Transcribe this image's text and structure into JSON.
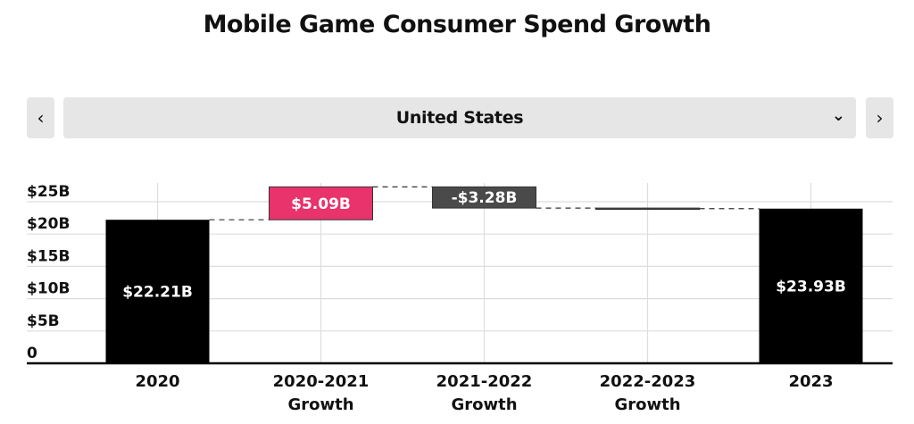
{
  "title": "Mobile Game Consumer Spend Growth",
  "selector": {
    "prev_label": "‹",
    "next_label": "›",
    "selected": "United States",
    "chevron": "⌄"
  },
  "colors": {
    "total": "#000000",
    "increase": "#e8336d",
    "decrease": "#4a4a4a",
    "grid": "#dddddd"
  },
  "chart_data": {
    "type": "bar",
    "subtype": "waterfall",
    "title": "Mobile Game Consumer Spend Growth",
    "xlabel": "",
    "ylabel": "",
    "ylim": [
      0,
      25
    ],
    "yticks": [
      0,
      5,
      10,
      15,
      20,
      25
    ],
    "ytick_labels": [
      "0",
      "$5B",
      "$10B",
      "$15B",
      "$20B",
      "$25B"
    ],
    "grid": true,
    "categories": [
      [
        "2020"
      ],
      [
        "2020-2021",
        "Growth"
      ],
      [
        "2021-2022",
        "Growth"
      ],
      [
        "2022-2023",
        "Growth"
      ],
      [
        "2023"
      ]
    ],
    "bars": [
      {
        "kind": "total",
        "value": 22.21,
        "label": "$22.21B"
      },
      {
        "kind": "increase",
        "value": 5.09,
        "label": "$5.09B"
      },
      {
        "kind": "decrease",
        "value": -3.28,
        "label": "-$3.28B"
      },
      {
        "kind": "decrease",
        "value": -0.09,
        "label": ""
      },
      {
        "kind": "total",
        "value": 23.93,
        "label": "$23.93B"
      }
    ]
  }
}
